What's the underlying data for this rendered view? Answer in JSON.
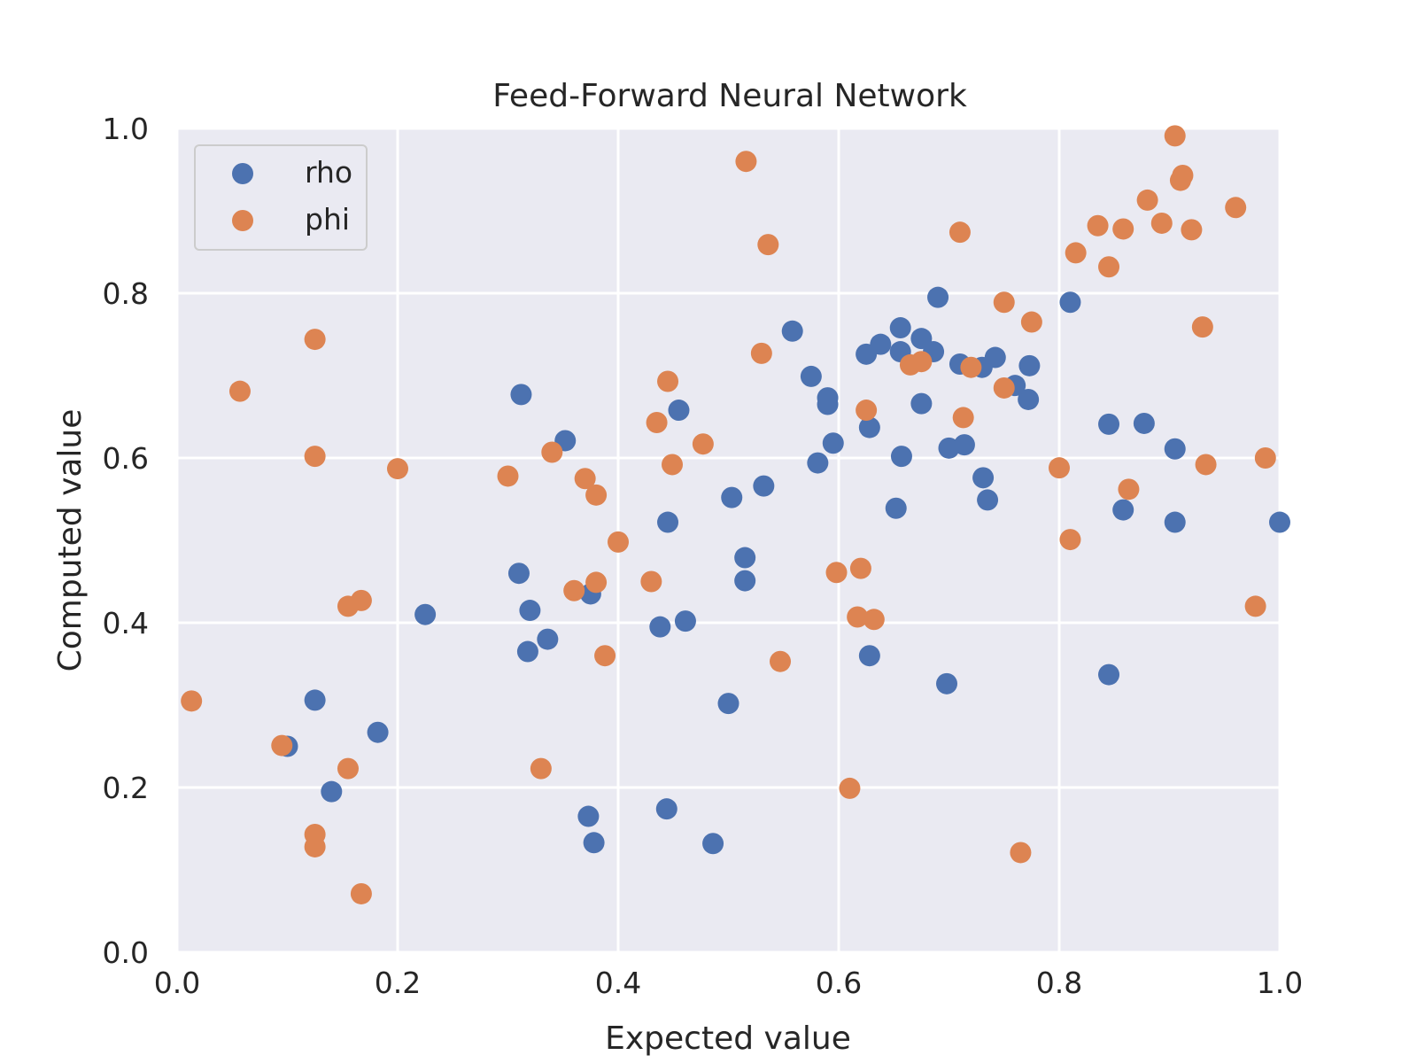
{
  "chart_data": {
    "type": "scatter",
    "title": "Feed-Forward Neural Network",
    "xlabel": "Expected value",
    "ylabel": "Computed value",
    "xlim": [
      0,
      1
    ],
    "ylim": [
      0,
      1
    ],
    "xticks": [
      "0.0",
      "0.2",
      "0.4",
      "0.6",
      "0.8",
      "1.0"
    ],
    "yticks": [
      "0.0",
      "0.2",
      "0.4",
      "0.6",
      "0.8",
      "1.0"
    ],
    "grid": true,
    "legend_position": "top-left",
    "background_color": "#eaeaf2",
    "series": [
      {
        "name": "rho",
        "color": "#4c72b0",
        "points": [
          [
            0.1,
            0.25
          ],
          [
            0.125,
            0.306
          ],
          [
            0.14,
            0.195
          ],
          [
            0.182,
            0.267
          ],
          [
            0.225,
            0.41
          ],
          [
            0.31,
            0.46
          ],
          [
            0.312,
            0.677
          ],
          [
            0.318,
            0.365
          ],
          [
            0.32,
            0.415
          ],
          [
            0.336,
            0.38
          ],
          [
            0.352,
            0.621
          ],
          [
            0.373,
            0.165
          ],
          [
            0.375,
            0.435
          ],
          [
            0.378,
            0.133
          ],
          [
            0.438,
            0.395
          ],
          [
            0.444,
            0.174
          ],
          [
            0.445,
            0.522
          ],
          [
            0.455,
            0.658
          ],
          [
            0.461,
            0.402
          ],
          [
            0.486,
            0.132
          ],
          [
            0.5,
            0.302
          ],
          [
            0.503,
            0.552
          ],
          [
            0.515,
            0.479
          ],
          [
            0.515,
            0.451
          ],
          [
            0.532,
            0.566
          ],
          [
            0.558,
            0.754
          ],
          [
            0.575,
            0.699
          ],
          [
            0.581,
            0.594
          ],
          [
            0.59,
            0.673
          ],
          [
            0.59,
            0.665
          ],
          [
            0.595,
            0.618
          ],
          [
            0.625,
            0.726
          ],
          [
            0.628,
            0.637
          ],
          [
            0.628,
            0.36
          ],
          [
            0.638,
            0.738
          ],
          [
            0.652,
            0.539
          ],
          [
            0.656,
            0.758
          ],
          [
            0.656,
            0.729
          ],
          [
            0.657,
            0.602
          ],
          [
            0.675,
            0.745
          ],
          [
            0.675,
            0.666
          ],
          [
            0.686,
            0.729
          ],
          [
            0.69,
            0.795
          ],
          [
            0.698,
            0.326
          ],
          [
            0.7,
            0.612
          ],
          [
            0.71,
            0.714
          ],
          [
            0.714,
            0.616
          ],
          [
            0.73,
            0.71
          ],
          [
            0.731,
            0.576
          ],
          [
            0.735,
            0.549
          ],
          [
            0.742,
            0.722
          ],
          [
            0.76,
            0.688
          ],
          [
            0.772,
            0.671
          ],
          [
            0.773,
            0.712
          ],
          [
            0.81,
            0.789
          ],
          [
            0.845,
            0.641
          ],
          [
            0.845,
            0.337
          ],
          [
            0.858,
            0.537
          ],
          [
            0.877,
            0.642
          ],
          [
            0.905,
            0.611
          ],
          [
            0.905,
            0.522
          ],
          [
            1.0,
            0.522
          ]
        ]
      },
      {
        "name": "phi",
        "color": "#dd8452",
        "points": [
          [
            0.013,
            0.305
          ],
          [
            0.057,
            0.681
          ],
          [
            0.095,
            0.251
          ],
          [
            0.125,
            0.744
          ],
          [
            0.125,
            0.602
          ],
          [
            0.125,
            0.143
          ],
          [
            0.125,
            0.128
          ],
          [
            0.155,
            0.42
          ],
          [
            0.155,
            0.223
          ],
          [
            0.167,
            0.427
          ],
          [
            0.167,
            0.071
          ],
          [
            0.2,
            0.587
          ],
          [
            0.3,
            0.578
          ],
          [
            0.33,
            0.223
          ],
          [
            0.34,
            0.607
          ],
          [
            0.36,
            0.439
          ],
          [
            0.37,
            0.575
          ],
          [
            0.38,
            0.555
          ],
          [
            0.38,
            0.449
          ],
          [
            0.388,
            0.36
          ],
          [
            0.4,
            0.498
          ],
          [
            0.43,
            0.45
          ],
          [
            0.435,
            0.643
          ],
          [
            0.445,
            0.693
          ],
          [
            0.449,
            0.592
          ],
          [
            0.477,
            0.617
          ],
          [
            0.516,
            0.96
          ],
          [
            0.53,
            0.727
          ],
          [
            0.536,
            0.859
          ],
          [
            0.547,
            0.353
          ],
          [
            0.598,
            0.461
          ],
          [
            0.61,
            0.199
          ],
          [
            0.617,
            0.407
          ],
          [
            0.62,
            0.466
          ],
          [
            0.625,
            0.658
          ],
          [
            0.632,
            0.404
          ],
          [
            0.665,
            0.713
          ],
          [
            0.675,
            0.717
          ],
          [
            0.71,
            0.874
          ],
          [
            0.713,
            0.649
          ],
          [
            0.72,
            0.71
          ],
          [
            0.75,
            0.789
          ],
          [
            0.75,
            0.685
          ],
          [
            0.765,
            0.121
          ],
          [
            0.775,
            0.765
          ],
          [
            0.8,
            0.588
          ],
          [
            0.81,
            0.501
          ],
          [
            0.815,
            0.849
          ],
          [
            0.835,
            0.882
          ],
          [
            0.845,
            0.832
          ],
          [
            0.858,
            0.878
          ],
          [
            0.863,
            0.562
          ],
          [
            0.88,
            0.913
          ],
          [
            0.893,
            0.885
          ],
          [
            0.905,
            0.991
          ],
          [
            0.91,
            0.937
          ],
          [
            0.912,
            0.943
          ],
          [
            0.92,
            0.877
          ],
          [
            0.93,
            0.759
          ],
          [
            0.933,
            0.592
          ],
          [
            0.96,
            0.904
          ],
          [
            0.978,
            0.42
          ],
          [
            0.987,
            0.6
          ]
        ]
      }
    ]
  }
}
